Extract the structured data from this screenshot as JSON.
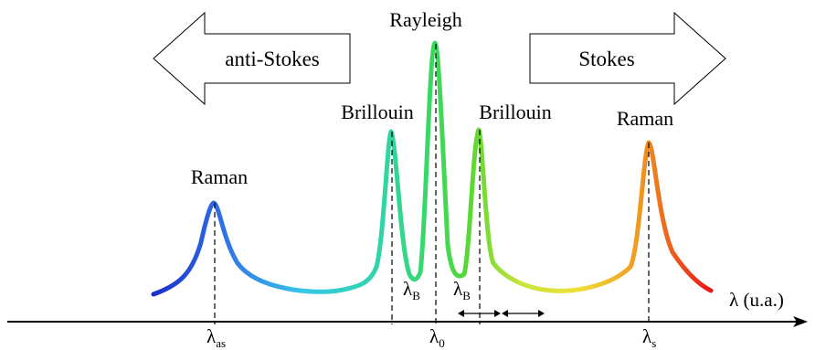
{
  "peaks": {
    "raman_left": "Raman",
    "brillouin_left": "Brillouin",
    "rayleigh": "Rayleigh",
    "brillouin_right": "Brillouin",
    "raman_right": "Raman"
  },
  "arrows": {
    "anti_stokes": "anti-Stokes",
    "stokes": "Stokes"
  },
  "colors": {
    "anti_stokes": "#2a5fd6",
    "stokes": "#e01818"
  },
  "axis": {
    "label": "λ (u.a.)",
    "lambda": "λ",
    "ticks": [
      {
        "sub": "as"
      },
      {
        "sub": "0"
      },
      {
        "sub": "s"
      }
    ],
    "shift_left_sub": "B",
    "shift_right_sub": "B"
  }
}
